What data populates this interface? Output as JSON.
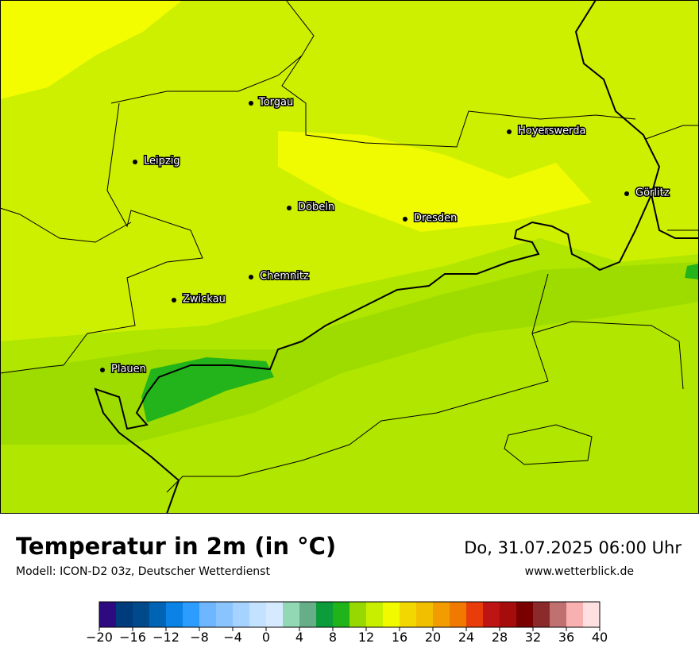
{
  "map": {
    "cities": [
      "Torgau",
      "Leipzig",
      "Hoyerswerda",
      "Görlitz",
      "Döbeln",
      "Dresden",
      "Chemnitz",
      "Zwickau",
      "Plauen"
    ]
  },
  "footer": {
    "title": "Temperatur in 2m (in °C)",
    "subtitle": "Modell: ICON-D2 03z, Deutscher Wetterdienst",
    "datetime": "Do, 31.07.2025 06:00 Uhr",
    "website": "www.wetterblick.de"
  },
  "colorbar": {
    "lim": [
      -20,
      40
    ],
    "colors": [
      "#2e0a80",
      "#003c7c",
      "#004a8c",
      "#0064b4",
      "#0a82e6",
      "#2d9cff",
      "#6eb6ff",
      "#8ac4ff",
      "#a6d2ff",
      "#c2e2ff",
      "#d6eaff",
      "#92d8b4",
      "#66ae88",
      "#0c9c3a",
      "#20b41a",
      "#96d800",
      "#c8ee00",
      "#f2fa00",
      "#f2d800",
      "#f2be00",
      "#f29c00",
      "#f07a00",
      "#e83c0a",
      "#be1414",
      "#a60c0c",
      "#7a0000",
      "#8a2a2a",
      "#c07070",
      "#f8b0b0",
      "#ffe0e0"
    ],
    "ticks": [
      {
        "value": -20,
        "label": "−20"
      },
      {
        "value": -16,
        "label": "−16"
      },
      {
        "value": -12,
        "label": "−12"
      },
      {
        "value": -8,
        "label": "−8"
      },
      {
        "value": -4,
        "label": "−4"
      },
      0,
      4,
      8,
      12,
      16,
      20,
      24,
      28,
      32,
      36,
      40
    ]
  }
}
